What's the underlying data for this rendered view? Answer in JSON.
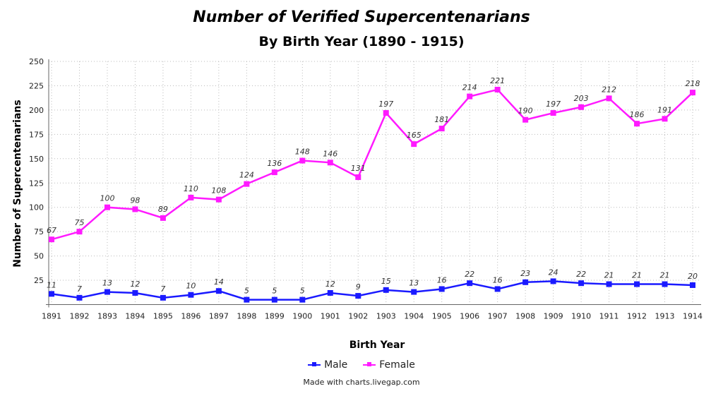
{
  "chart_data": {
    "type": "line",
    "title": "Number of Verified Supercentenarians",
    "subtitle": "By Birth Year (1890 - 1915)",
    "xlabel": "Birth Year",
    "ylabel": "Number of Supercentenarians",
    "x": [
      1891,
      1892,
      1893,
      1894,
      1895,
      1896,
      1897,
      1898,
      1899,
      1900,
      1901,
      1902,
      1903,
      1904,
      1905,
      1906,
      1907,
      1908,
      1909,
      1910,
      1911,
      1912,
      1913,
      1914
    ],
    "ylim": [
      0,
      250
    ],
    "yticks": [
      25,
      50,
      75,
      100,
      125,
      150,
      175,
      200,
      225,
      250
    ],
    "grid": true,
    "legend": "bottom",
    "series": [
      {
        "name": "Male",
        "color": "#1a1aff",
        "values": [
          11,
          7,
          13,
          12,
          7,
          10,
          14,
          5,
          5,
          5,
          12,
          9,
          15,
          13,
          16,
          22,
          16,
          23,
          24,
          22,
          21,
          21,
          21,
          20
        ]
      },
      {
        "name": "Female",
        "color": "#ff1aff",
        "values": [
          67,
          75,
          100,
          98,
          89,
          110,
          108,
          124,
          136,
          148,
          146,
          131,
          197,
          165,
          181,
          214,
          221,
          190,
          197,
          203,
          212,
          186,
          191,
          218
        ]
      }
    ]
  },
  "credit": "Made with charts.livegap.com"
}
